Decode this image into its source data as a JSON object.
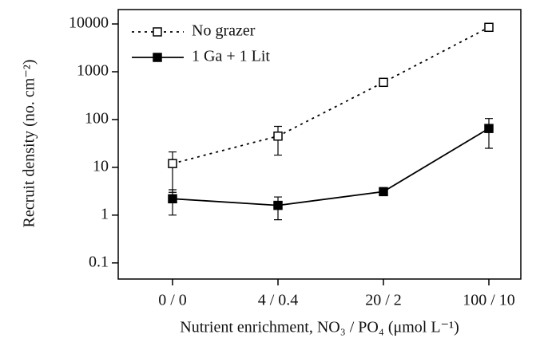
{
  "chart_data": {
    "type": "line",
    "x_label": "Nutrient enrichment, NO₃ / PO₄ (μmol L⁻¹)",
    "y_label": "Recruit density (no. cm⁻²)",
    "categories": [
      "0 / 0",
      "4 / 0.4",
      "20 / 2",
      "100 / 10"
    ],
    "series": [
      {
        "name": "No grazer",
        "color": "#000000",
        "line_style": "dotted",
        "marker_fill": "open",
        "values": [
          12,
          45,
          600,
          8500
        ],
        "errors": [
          9,
          27,
          100,
          700
        ]
      },
      {
        "name": "1 Ga + 1 Lit",
        "color": "#000000",
        "line_style": "solid",
        "marker_fill": "filled",
        "values": [
          2.2,
          1.6,
          3.1,
          65
        ],
        "errors": [
          1.2,
          0.8,
          0.4,
          40
        ]
      }
    ],
    "y_scale": "log",
    "ylim": [
      0.046,
      20000
    ],
    "yticks": [
      0.1,
      1,
      10,
      100,
      1000,
      10000
    ],
    "legend": "upper left"
  }
}
